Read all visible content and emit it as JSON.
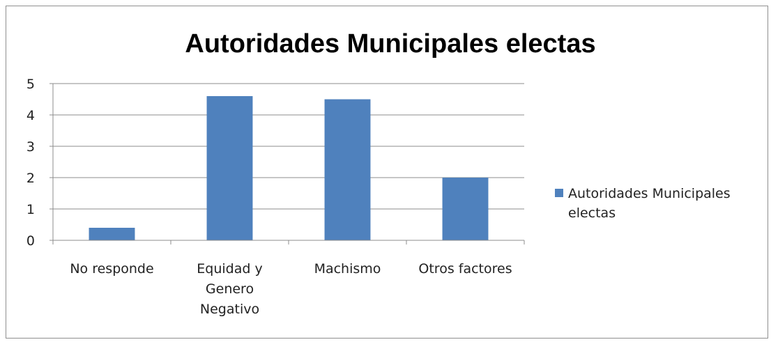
{
  "chart_data": {
    "type": "bar",
    "title": "Autoridades Municipales electas",
    "xlabel": "",
    "ylabel": "",
    "categories": [
      [
        "No responde"
      ],
      [
        "Equidad y",
        "Genero",
        "Negativo"
      ],
      [
        "Machismo"
      ],
      [
        "Otros factores"
      ]
    ],
    "series": [
      {
        "name": "Autoridades Municipales electas",
        "values": [
          0.4,
          4.6,
          4.5,
          2.0
        ],
        "color": "#4f81bd"
      }
    ],
    "ylim": [
      0,
      5
    ],
    "yticks": [
      "0",
      "1",
      "2",
      "3",
      "4",
      "5"
    ],
    "grid": true,
    "legend": {
      "position": "right",
      "lines": [
        "Autoridades Municipales",
        "electas"
      ]
    }
  }
}
